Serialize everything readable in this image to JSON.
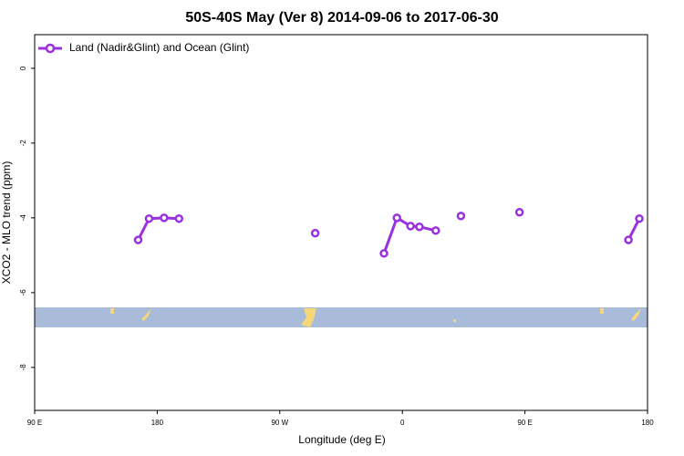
{
  "chart_data": {
    "type": "line",
    "title": "50S-40S May (Ver 8)   2014-09-06 to 2017-06-30",
    "x_label": "Longitude (deg E)",
    "y_label": "XCO2 - MLO trend (ppm)",
    "xlim": [
      90,
      540
    ],
    "ylim": [
      -9.15,
      0.9
    ],
    "xticks": [
      {
        "value": 90,
        "label": "90 E"
      },
      {
        "value": 180,
        "label": "180"
      },
      {
        "value": 270,
        "label": "90 W"
      },
      {
        "value": 360,
        "label": "0"
      },
      {
        "value": 450,
        "label": "90 E"
      },
      {
        "value": 540,
        "label": "180"
      }
    ],
    "yticks": [
      0,
      -2,
      -4,
      -6,
      -8
    ],
    "legend": "top-left",
    "series": [
      {
        "name": "Land (Nadir&Glint) and Ocean (Glint)",
        "color": "#9b30e0",
        "x": [
          166,
          174,
          185,
          196,
          null,
          296,
          null,
          346.5,
          356,
          366,
          372.5,
          384.5,
          null,
          403,
          null,
          446,
          null,
          526,
          534
        ],
        "values": [
          -4.59,
          -4.02,
          -4.0,
          -4.02,
          null,
          -4.41,
          null,
          -4.95,
          -4.0,
          -4.22,
          -4.24,
          -4.34,
          null,
          -3.95,
          null,
          -3.85,
          null,
          -4.59,
          -4.02
        ]
      }
    ]
  }
}
